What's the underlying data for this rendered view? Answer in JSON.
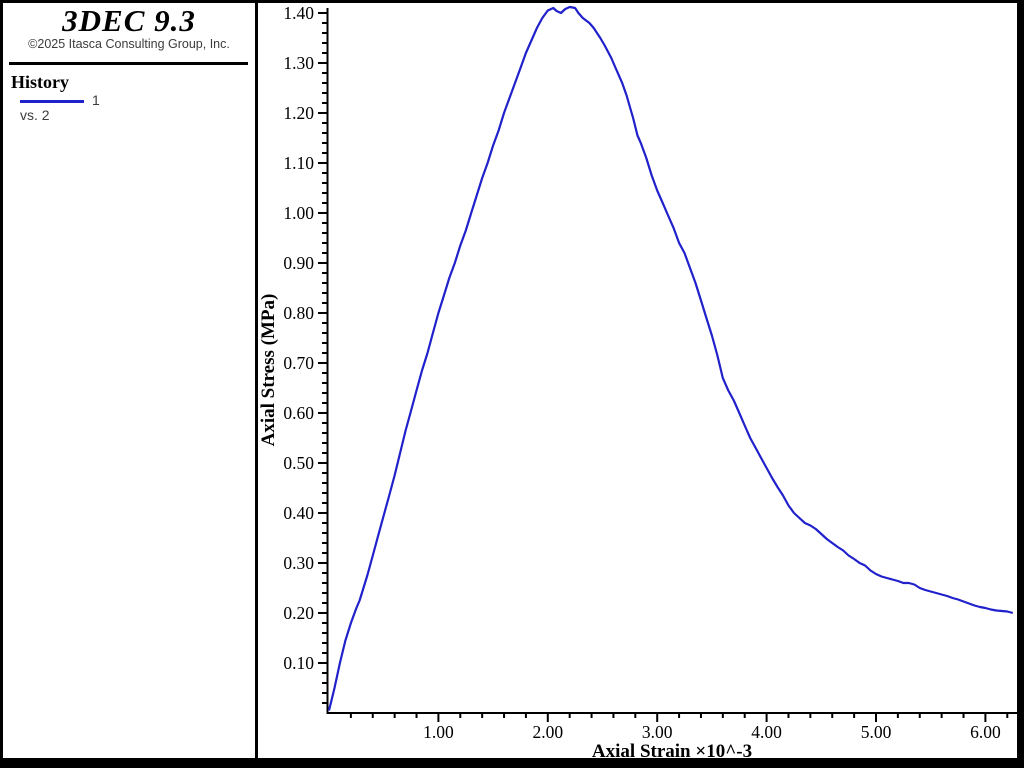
{
  "app": {
    "title": "3DEC 9.3",
    "copyright": "©2025 Itasca Consulting Group, Inc."
  },
  "legend": {
    "section_title": "History",
    "series_label": "1",
    "vs_label": "vs. 2"
  },
  "colors": {
    "curve_blue": "#2121cc",
    "axis_black": "#000000",
    "muted_text": "#3c3c3c"
  },
  "chart_data": {
    "type": "line",
    "title": "",
    "xlabel": "Axial Strain ×10^-3",
    "ylabel": "Axial Stress (MPa)",
    "xlim": [
      0,
      6.29
    ],
    "ylim": [
      0,
      1.41
    ],
    "grid": false,
    "legend_position": "sidebar-top-left",
    "x_major_ticks": [
      1,
      2,
      3,
      4,
      5,
      6
    ],
    "x_tick_labels": [
      "1.00",
      "2.00",
      "3.00",
      "4.00",
      "5.00",
      "6.00"
    ],
    "x_minor_step": 0.2,
    "y_major_ticks": [
      0.1,
      0.2,
      0.3,
      0.4,
      0.5,
      0.6,
      0.7,
      0.8,
      0.9,
      1.0,
      1.1,
      1.2,
      1.3,
      1.4
    ],
    "y_tick_labels": [
      "0.10",
      "0.20",
      "0.30",
      "0.40",
      "0.50",
      "0.60",
      "0.70",
      "0.80",
      "0.90",
      "1.00",
      "1.10",
      "1.20",
      "1.30",
      "1.40"
    ],
    "y_minor_step": 0.02,
    "series": [
      {
        "name": "1",
        "color": "#2121cc",
        "points": [
          [
            0.0,
            0.005
          ],
          [
            0.05,
            0.05
          ],
          [
            0.1,
            0.1
          ],
          [
            0.15,
            0.145
          ],
          [
            0.2,
            0.18
          ],
          [
            0.25,
            0.21
          ],
          [
            0.28,
            0.225
          ],
          [
            0.35,
            0.275
          ],
          [
            0.4,
            0.315
          ],
          [
            0.45,
            0.355
          ],
          [
            0.5,
            0.395
          ],
          [
            0.55,
            0.435
          ],
          [
            0.6,
            0.475
          ],
          [
            0.65,
            0.52
          ],
          [
            0.7,
            0.565
          ],
          [
            0.75,
            0.605
          ],
          [
            0.8,
            0.645
          ],
          [
            0.85,
            0.685
          ],
          [
            0.9,
            0.72
          ],
          [
            0.95,
            0.76
          ],
          [
            1.0,
            0.8
          ],
          [
            1.05,
            0.835
          ],
          [
            1.1,
            0.87
          ],
          [
            1.15,
            0.9
          ],
          [
            1.2,
            0.935
          ],
          [
            1.25,
            0.965
          ],
          [
            1.3,
            1.0
          ],
          [
            1.35,
            1.035
          ],
          [
            1.4,
            1.07
          ],
          [
            1.45,
            1.1
          ],
          [
            1.5,
            1.135
          ],
          [
            1.55,
            1.165
          ],
          [
            1.6,
            1.2
          ],
          [
            1.65,
            1.23
          ],
          [
            1.7,
            1.26
          ],
          [
            1.75,
            1.29
          ],
          [
            1.8,
            1.32
          ],
          [
            1.85,
            1.345
          ],
          [
            1.9,
            1.37
          ],
          [
            1.95,
            1.39
          ],
          [
            2.0,
            1.405
          ],
          [
            2.05,
            1.41
          ],
          [
            2.08,
            1.404
          ],
          [
            2.12,
            1.4
          ],
          [
            2.16,
            1.408
          ],
          [
            2.2,
            1.412
          ],
          [
            2.25,
            1.41
          ],
          [
            2.28,
            1.4
          ],
          [
            2.32,
            1.39
          ],
          [
            2.38,
            1.38
          ],
          [
            2.42,
            1.37
          ],
          [
            2.48,
            1.35
          ],
          [
            2.52,
            1.335
          ],
          [
            2.58,
            1.31
          ],
          [
            2.62,
            1.29
          ],
          [
            2.68,
            1.26
          ],
          [
            2.72,
            1.235
          ],
          [
            2.78,
            1.19
          ],
          [
            2.82,
            1.155
          ],
          [
            2.85,
            1.14
          ],
          [
            2.9,
            1.11
          ],
          [
            2.95,
            1.075
          ],
          [
            3.0,
            1.045
          ],
          [
            3.05,
            1.02
          ],
          [
            3.1,
            0.995
          ],
          [
            3.15,
            0.97
          ],
          [
            3.2,
            0.94
          ],
          [
            3.25,
            0.92
          ],
          [
            3.3,
            0.89
          ],
          [
            3.35,
            0.86
          ],
          [
            3.4,
            0.825
          ],
          [
            3.45,
            0.79
          ],
          [
            3.5,
            0.755
          ],
          [
            3.55,
            0.715
          ],
          [
            3.6,
            0.67
          ],
          [
            3.65,
            0.645
          ],
          [
            3.7,
            0.625
          ],
          [
            3.75,
            0.6
          ],
          [
            3.8,
            0.575
          ],
          [
            3.85,
            0.55
          ],
          [
            3.9,
            0.53
          ],
          [
            3.95,
            0.51
          ],
          [
            4.0,
            0.49
          ],
          [
            4.05,
            0.47
          ],
          [
            4.1,
            0.452
          ],
          [
            4.15,
            0.435
          ],
          [
            4.2,
            0.415
          ],
          [
            4.25,
            0.4
          ],
          [
            4.3,
            0.39
          ],
          [
            4.35,
            0.38
          ],
          [
            4.4,
            0.375
          ],
          [
            4.45,
            0.368
          ],
          [
            4.5,
            0.358
          ],
          [
            4.55,
            0.348
          ],
          [
            4.6,
            0.34
          ],
          [
            4.65,
            0.332
          ],
          [
            4.7,
            0.325
          ],
          [
            4.75,
            0.315
          ],
          [
            4.8,
            0.308
          ],
          [
            4.85,
            0.3
          ],
          [
            4.9,
            0.295
          ],
          [
            4.95,
            0.285
          ],
          [
            5.0,
            0.278
          ],
          [
            5.05,
            0.273
          ],
          [
            5.1,
            0.27
          ],
          [
            5.15,
            0.267
          ],
          [
            5.2,
            0.264
          ],
          [
            5.25,
            0.26
          ],
          [
            5.3,
            0.26
          ],
          [
            5.35,
            0.257
          ],
          [
            5.4,
            0.25
          ],
          [
            5.45,
            0.246
          ],
          [
            5.5,
            0.243
          ],
          [
            5.55,
            0.24
          ],
          [
            5.6,
            0.237
          ],
          [
            5.65,
            0.234
          ],
          [
            5.7,
            0.23
          ],
          [
            5.75,
            0.227
          ],
          [
            5.8,
            0.223
          ],
          [
            5.85,
            0.219
          ],
          [
            5.9,
            0.215
          ],
          [
            5.95,
            0.212
          ],
          [
            6.0,
            0.21
          ],
          [
            6.05,
            0.207
          ],
          [
            6.1,
            0.205
          ],
          [
            6.15,
            0.204
          ],
          [
            6.2,
            0.203
          ],
          [
            6.25,
            0.2
          ]
        ]
      }
    ]
  }
}
